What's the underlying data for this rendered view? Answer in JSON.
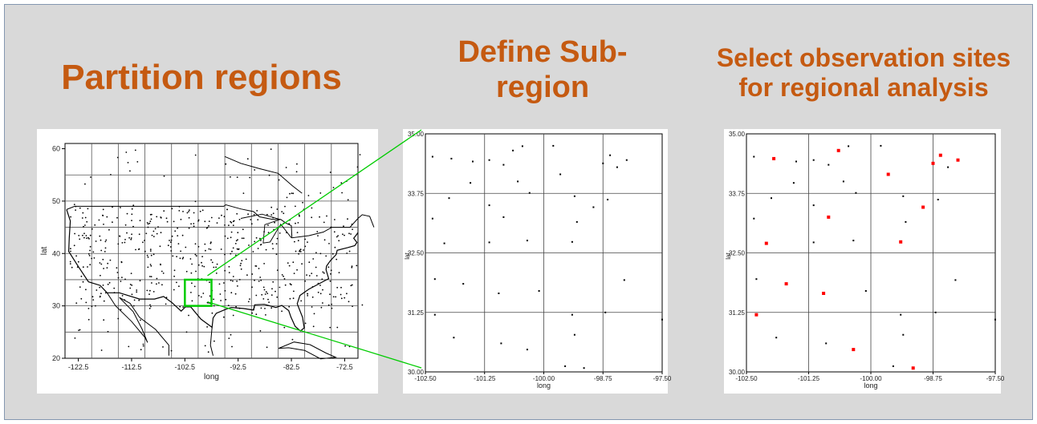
{
  "headings": {
    "partition": "Partition regions",
    "define_line1": "Define Sub-",
    "define_line2": "region",
    "select_line1": "Select observation sites",
    "select_line2": "for regional analysis"
  },
  "colors": {
    "heading": "#c55a11",
    "background": "#d9d9d9",
    "highlight": "#00cc00",
    "selected_site": "#ff0000",
    "site": "#000000"
  },
  "map": {
    "xlabel": "long",
    "ylabel": "lat",
    "x_ticks": [
      "-122.5",
      "-112.5",
      "-102.5",
      "-92.5",
      "-82.5",
      "-72.5"
    ],
    "y_ticks": [
      "60",
      "50",
      "40",
      "30",
      "20"
    ],
    "xlim": [
      -125,
      -70
    ],
    "ylim": [
      20,
      61
    ],
    "grid_lons": [
      -120,
      -115,
      -110,
      -105,
      -100,
      -95,
      -90,
      -85,
      -80,
      -75
    ],
    "grid_lats": [
      25,
      30,
      35,
      40,
      45,
      50,
      55
    ],
    "subregion": {
      "lon": [
        -102.5,
        -97.5
      ],
      "lat": [
        30,
        35
      ]
    }
  },
  "subregion_plot": {
    "xlabel": "long",
    "ylabel": "lat",
    "x_ticks": [
      "-102.50",
      "-101.25",
      "-100.00",
      "-98.75",
      "-97.50"
    ],
    "y_ticks": [
      "35.00",
      "33.75",
      "32.50",
      "31.25",
      "30.00"
    ],
    "xlim": [
      -102.5,
      -97.5
    ],
    "ylim": [
      30,
      35
    ]
  },
  "chart_data": {
    "type": "scatter",
    "xlabel": "long",
    "ylabel": "lat",
    "xlim": [
      -102.5,
      -97.5
    ],
    "ylim": [
      30,
      35
    ],
    "series": [
      {
        "points": [
          [
            -102.35,
            34.52
          ],
          [
            -101.95,
            34.48
          ],
          [
            -101.5,
            34.42
          ],
          [
            -101.15,
            34.45
          ],
          [
            -100.85,
            34.35
          ],
          [
            -100.65,
            34.65
          ],
          [
            -100.45,
            34.74
          ],
          [
            -99.8,
            34.75
          ],
          [
            -98.6,
            34.55
          ],
          [
            -98.75,
            34.38
          ],
          [
            -98.45,
            34.3
          ],
          [
            -98.25,
            34.45
          ],
          [
            -101.55,
            33.97
          ],
          [
            -100.55,
            34.0
          ],
          [
            -99.65,
            34.15
          ],
          [
            -102.0,
            33.65
          ],
          [
            -100.3,
            33.76
          ],
          [
            -99.35,
            33.69
          ],
          [
            -98.95,
            33.46
          ],
          [
            -98.65,
            33.62
          ],
          [
            -101.15,
            33.5
          ],
          [
            -100.85,
            33.25
          ],
          [
            -99.3,
            33.15
          ],
          [
            -102.35,
            33.22
          ],
          [
            -102.1,
            32.7
          ],
          [
            -101.15,
            32.72
          ],
          [
            -100.35,
            32.76
          ],
          [
            -99.4,
            32.73
          ],
          [
            -102.3,
            31.95
          ],
          [
            -101.7,
            31.85
          ],
          [
            -100.95,
            31.65
          ],
          [
            -100.1,
            31.7
          ],
          [
            -98.3,
            31.93
          ],
          [
            -102.3,
            31.2
          ],
          [
            -101.9,
            30.72
          ],
          [
            -100.9,
            30.6
          ],
          [
            -99.4,
            31.2
          ],
          [
            -98.7,
            31.25
          ],
          [
            -99.35,
            30.78
          ],
          [
            -100.35,
            30.47
          ],
          [
            -99.55,
            30.12
          ],
          [
            -99.15,
            30.08
          ],
          [
            -97.5,
            31.1
          ]
        ]
      }
    ],
    "selected_indices": [
      1,
      5,
      8,
      9,
      11,
      14,
      18,
      21,
      24,
      27,
      29,
      30,
      33,
      39,
      41
    ]
  }
}
